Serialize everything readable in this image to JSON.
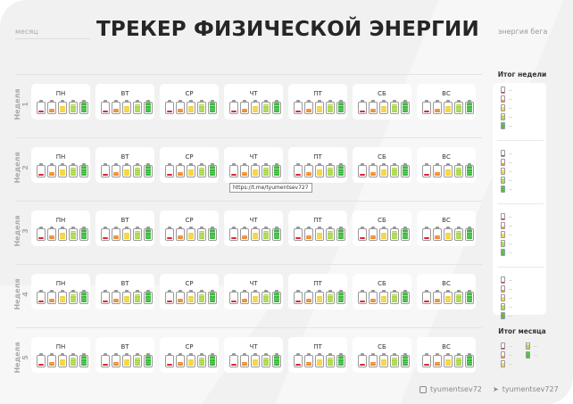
{
  "header": {
    "month_label": "месяц",
    "title": "ТРЕКЕР ФИЗИЧЕСКОЙ ЭНЕРГИИ",
    "running_energy_label": "энергия бега"
  },
  "weeks": [
    "Неделя 1",
    "Неделя 2",
    "Неделя 3",
    "Неделя 4",
    "Неделя 5"
  ],
  "days": [
    "ПН",
    "ВТ",
    "СР",
    "ЧТ",
    "ПТ",
    "СБ",
    "ВС"
  ],
  "battery_levels": [
    {
      "level_percent": 20,
      "color": "#e0242f"
    },
    {
      "level_percent": 40,
      "color": "#f08a2c"
    },
    {
      "level_percent": 60,
      "color": "#f4d33a"
    },
    {
      "level_percent": 80,
      "color": "#a8d74a"
    },
    {
      "level_percent": 100,
      "color": "#3cb93c"
    }
  ],
  "summary": {
    "week_title": "Итог недели",
    "month_title": "Итог месяца"
  },
  "tooltip": "https://t.me/tyumentsev727",
  "footer": {
    "instagram": "tyumentsev72",
    "telegram": "tyumentsev727"
  }
}
